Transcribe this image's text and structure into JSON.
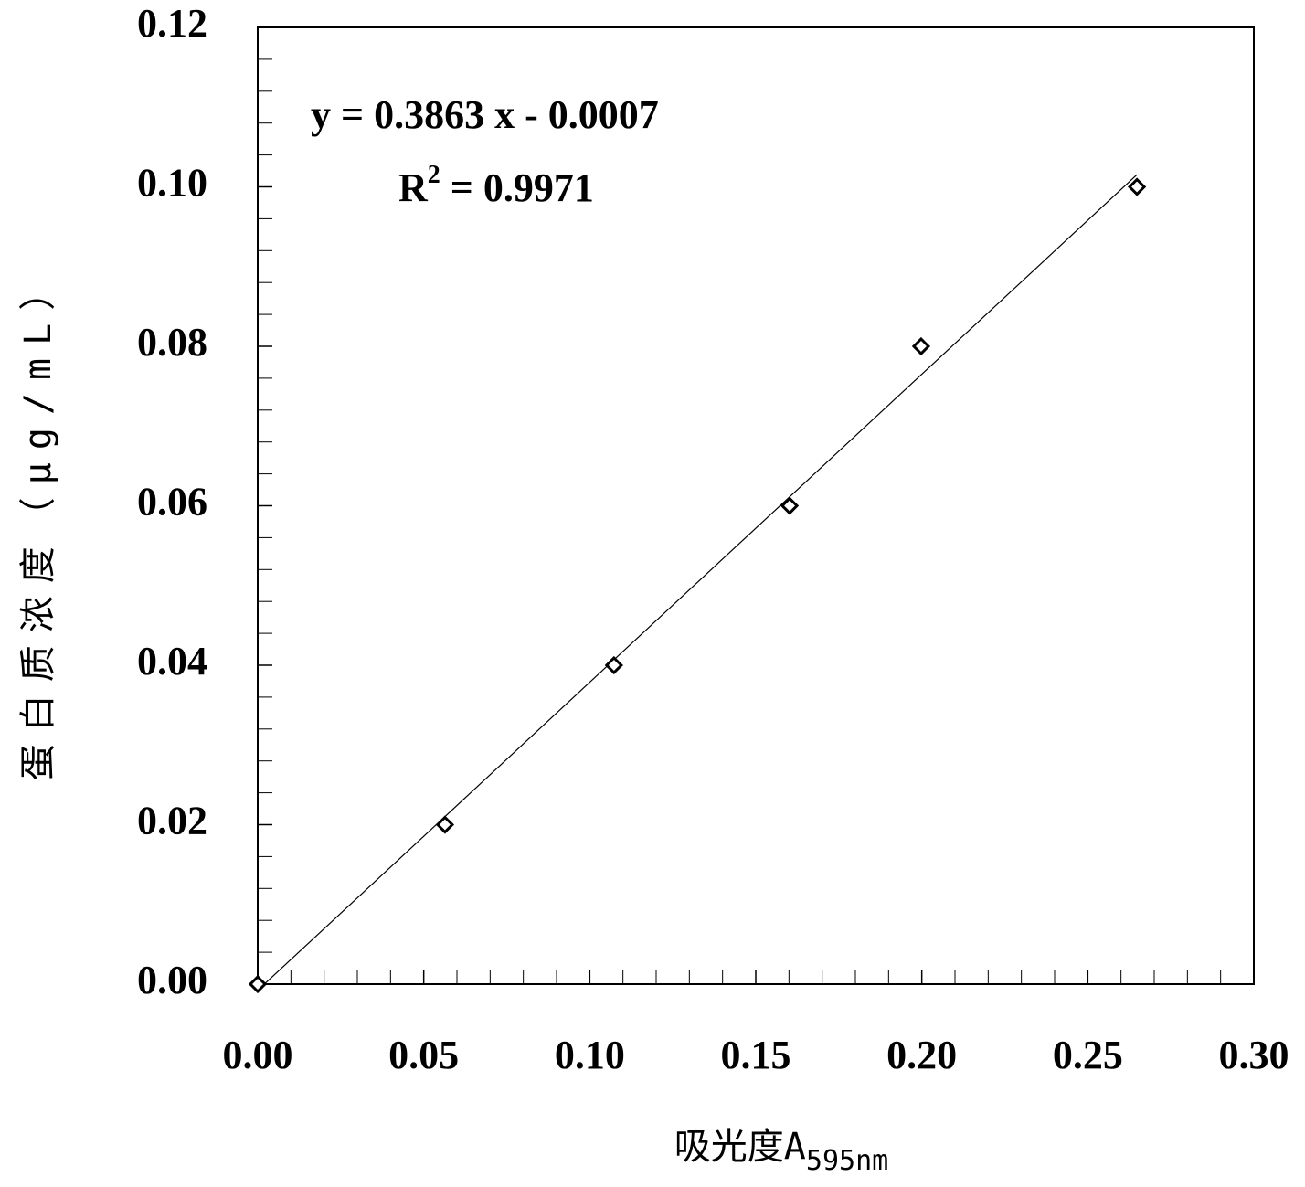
{
  "chart_data": {
    "type": "scatter",
    "x_label": {
      "text": "吸光度A",
      "sub": "595nm"
    },
    "y_label": "蛋白质浓度（μg/mL）",
    "x": [
      0,
      0.0564,
      0.1073,
      0.1602,
      0.1998,
      0.2648
    ],
    "series": [
      {
        "color": "#000000",
        "values": [
          0,
          0.02,
          0.04,
          0.06,
          0.08,
          0.1
        ]
      }
    ],
    "trendline": {
      "equation": "y = 0.3863 x - 0.0007",
      "r2": {
        "prefix": "R",
        "sup": "2",
        "rest": " = 0.9971"
      }
    },
    "xlim": [
      0,
      0.3
    ],
    "xticks": [
      {
        "value": 0,
        "label": "0.00"
      },
      {
        "value": 0.05,
        "label": "0.05"
      },
      {
        "value": 0.1,
        "label": "0.10"
      },
      {
        "value": 0.15,
        "label": "0.15"
      },
      {
        "value": 0.2,
        "label": "0.20"
      },
      {
        "value": 0.25,
        "label": "0.25"
      },
      {
        "value": 0.3,
        "label": "0.30"
      }
    ],
    "ylim": [
      0,
      0.12
    ],
    "yticks": [
      {
        "value": 0,
        "label": "0.00"
      },
      {
        "value": 0.02,
        "label": "0.02"
      },
      {
        "value": 0.04,
        "label": "0.04"
      },
      {
        "value": 0.06,
        "label": "0.06"
      },
      {
        "value": 0.08,
        "label": "0.08"
      },
      {
        "value": 0.1,
        "label": "0.10"
      },
      {
        "value": 0.12,
        "label": "0.12"
      }
    ],
    "minor_divisions": 5
  }
}
